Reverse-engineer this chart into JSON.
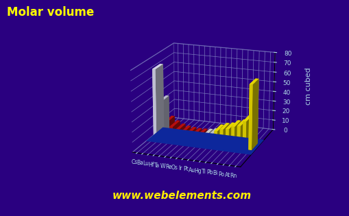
{
  "elements": [
    "Cs",
    "Ba",
    "Lu",
    "Hf",
    "Ta",
    "W",
    "Re",
    "Os",
    "Ir",
    "Pt",
    "Au",
    "Hg",
    "Tl",
    "Pb",
    "Bi",
    "Po",
    "At",
    "Rn"
  ],
  "values": [
    70.0,
    38.2,
    17.8,
    13.6,
    10.9,
    9.53,
    8.86,
    8.42,
    8.54,
    9.09,
    10.21,
    14.82,
    17.2,
    18.27,
    21.3,
    22.7,
    28.0,
    65.0
  ],
  "bar_colors_hex": [
    "#e8e8ff",
    "#d0d0e8",
    "#cc1111",
    "#cc1111",
    "#cc1111",
    "#cc1111",
    "#cc1111",
    "#cc1111",
    "#cc1111",
    "#e0e0e0",
    "#d8d8d8",
    "#ffee00",
    "#ffee00",
    "#ffee00",
    "#ffee00",
    "#ffee00",
    "#ffee00",
    "#ffee00"
  ],
  "title": "Molar volume",
  "ylabel": "cm cubed",
  "ylim": [
    0,
    80
  ],
  "yticks": [
    0,
    10,
    20,
    30,
    40,
    50,
    60,
    70,
    80
  ],
  "background_color": "#2a0080",
  "title_color": "#ffff00",
  "axis_color": "#add8e6",
  "grid_color": "#7777bb",
  "watermark": "www.webelements.com",
  "watermark_color": "#ffee00",
  "elev": 18,
  "azim": -70,
  "base_color": "#0000cc"
}
